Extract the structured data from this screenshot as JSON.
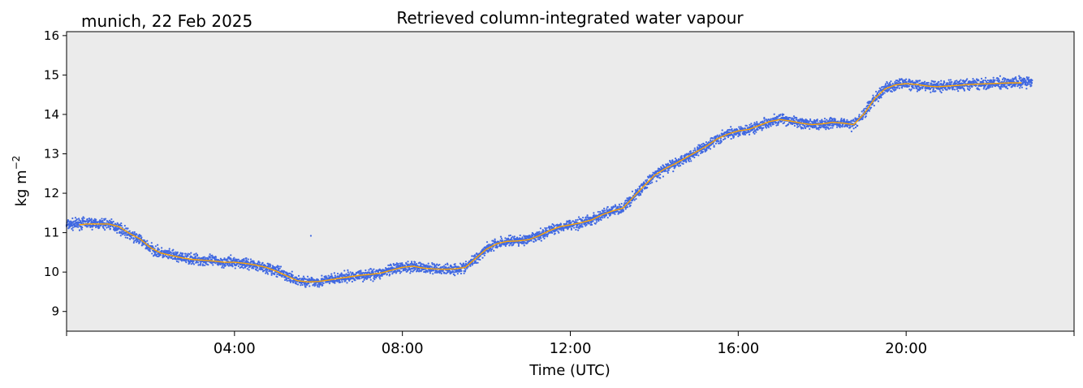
{
  "figure": {
    "location_date": "munich, 22 Feb 2025",
    "title": "Retrieved column-integrated water vapour"
  },
  "colors": {
    "background": "#ffffff",
    "plot_background": "#ebebeb",
    "scatter": "#4169e1",
    "smoothed_line": "#ffa500"
  },
  "chart_data": {
    "type": "scatter",
    "title": "Retrieved column-integrated water vapour",
    "xlabel": "Time (UTC)",
    "ylabel": "kg m",
    "ylabel_superscript": "−2",
    "xlim_hours": [
      0,
      24
    ],
    "ylim": [
      8.5,
      16.1
    ],
    "x_ticks": [
      {
        "hour": 4,
        "label": "04:00"
      },
      {
        "hour": 8,
        "label": "08:00"
      },
      {
        "hour": 12,
        "label": "12:00"
      },
      {
        "hour": 16,
        "label": "16:00"
      },
      {
        "hour": 20,
        "label": "20:00"
      }
    ],
    "x_minor_ticks_hours": [
      0,
      24
    ],
    "y_ticks": [
      9,
      10,
      11,
      12,
      13,
      14,
      15,
      16
    ],
    "grid": false,
    "legend": "none",
    "series": [
      {
        "kind": "scatter",
        "hours": [
          0.0,
          0.25,
          0.5,
          0.75,
          1.0,
          1.25,
          1.5,
          1.75,
          2.0,
          2.25,
          2.5,
          2.75,
          3.0,
          3.25,
          3.5,
          3.75,
          4.0,
          4.25,
          4.5,
          4.75,
          5.0,
          5.25,
          5.5,
          5.75,
          6.0,
          6.25,
          6.5,
          6.75,
          7.0,
          7.25,
          7.5,
          7.75,
          8.0,
          8.25,
          8.5,
          8.75,
          9.0,
          9.25,
          9.5,
          9.75,
          10.0,
          10.25,
          10.5,
          10.75,
          11.0,
          11.25,
          11.5,
          11.75,
          12.0,
          12.25,
          12.5,
          12.75,
          13.0,
          13.25,
          13.5,
          13.75,
          14.0,
          14.25,
          14.5,
          14.75,
          15.0,
          15.25,
          15.5,
          15.75,
          16.0,
          16.25,
          16.5,
          16.75,
          17.0,
          17.25,
          17.5,
          17.75,
          18.0,
          18.25,
          18.5,
          18.75,
          19.0,
          19.25,
          19.5,
          19.75,
          20.0,
          20.25,
          20.5,
          20.75,
          21.0,
          21.25,
          21.5,
          21.75,
          22.0,
          22.25,
          22.5,
          22.75,
          23.0
        ],
        "values": [
          11.2,
          11.22,
          11.25,
          11.22,
          11.22,
          11.12,
          10.95,
          10.82,
          10.6,
          10.48,
          10.42,
          10.36,
          10.33,
          10.3,
          10.28,
          10.25,
          10.25,
          10.22,
          10.18,
          10.12,
          10.02,
          9.9,
          9.78,
          9.75,
          9.76,
          9.8,
          9.84,
          9.88,
          9.92,
          9.94,
          9.98,
          10.05,
          10.12,
          10.15,
          10.1,
          10.08,
          10.07,
          10.08,
          10.12,
          10.35,
          10.6,
          10.72,
          10.78,
          10.8,
          10.82,
          10.92,
          11.05,
          11.15,
          11.2,
          11.25,
          11.32,
          11.45,
          11.55,
          11.62,
          11.9,
          12.18,
          12.45,
          12.62,
          12.75,
          12.9,
          13.05,
          13.2,
          13.38,
          13.5,
          13.58,
          13.62,
          13.72,
          13.82,
          13.87,
          13.83,
          13.78,
          13.74,
          13.76,
          13.8,
          13.78,
          13.74,
          14.02,
          14.4,
          14.65,
          14.75,
          14.78,
          14.76,
          14.72,
          14.7,
          14.72,
          14.74,
          14.76,
          14.77,
          14.78,
          14.79,
          14.8,
          14.81,
          14.82
        ],
        "outlier": {
          "hour": 5.82,
          "value": 10.92
        }
      },
      {
        "kind": "line",
        "hours": [
          0.3,
          0.5,
          0.75,
          1.0,
          1.25,
          1.5,
          1.75,
          2.0,
          2.25,
          2.5,
          2.75,
          3.0,
          3.25,
          3.5,
          3.75,
          4.0,
          4.25,
          4.5,
          4.75,
          5.0,
          5.25,
          5.5,
          5.75,
          6.0,
          6.25,
          6.5,
          6.75,
          7.0,
          7.25,
          7.5,
          7.75,
          8.0,
          8.25,
          8.5,
          8.75,
          9.0,
          9.25,
          9.5,
          9.75,
          10.0,
          10.25,
          10.5,
          10.75,
          11.0,
          11.25,
          11.5,
          11.75,
          12.0,
          12.25,
          12.5,
          12.75,
          13.0,
          13.25,
          13.5,
          13.75,
          14.0,
          14.25,
          14.5,
          14.75,
          15.0,
          15.25,
          15.5,
          15.75,
          16.0,
          16.25,
          16.5,
          16.75,
          17.0,
          17.25,
          17.5,
          17.75,
          18.0,
          18.25,
          18.5,
          18.75,
          19.0,
          19.25,
          19.5,
          19.75,
          20.0,
          20.25,
          20.5,
          20.75,
          21.0,
          21.25,
          21.5,
          21.75,
          22.0,
          22.25,
          22.5,
          22.75
        ],
        "values": [
          11.2,
          11.22,
          11.22,
          11.22,
          11.15,
          10.98,
          10.84,
          10.62,
          10.48,
          10.42,
          10.36,
          10.32,
          10.3,
          10.28,
          10.25,
          10.25,
          10.22,
          10.18,
          10.12,
          10.02,
          9.9,
          9.78,
          9.75,
          9.76,
          9.8,
          9.84,
          9.88,
          9.92,
          9.94,
          9.98,
          10.05,
          10.12,
          10.15,
          10.1,
          10.08,
          10.07,
          10.08,
          10.12,
          10.35,
          10.58,
          10.72,
          10.78,
          10.79,
          10.82,
          10.92,
          11.05,
          11.15,
          11.2,
          11.25,
          11.32,
          11.45,
          11.55,
          11.62,
          11.9,
          12.18,
          12.45,
          12.62,
          12.75,
          12.9,
          13.05,
          13.2,
          13.38,
          13.5,
          13.58,
          13.62,
          13.72,
          13.82,
          13.87,
          13.83,
          13.78,
          13.74,
          13.76,
          13.8,
          13.78,
          13.74,
          14.02,
          14.4,
          14.65,
          14.75,
          14.78,
          14.76,
          14.72,
          14.7,
          14.72,
          14.74,
          14.76,
          14.77,
          14.78,
          14.79,
          14.8,
          14.8
        ]
      }
    ]
  }
}
